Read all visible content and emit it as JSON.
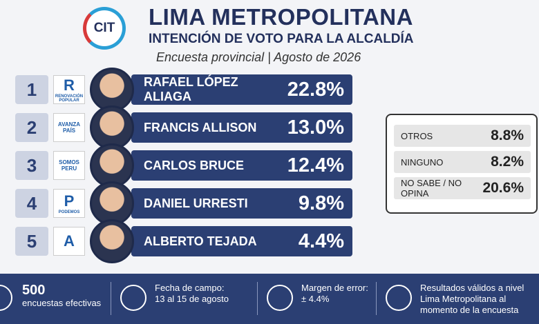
{
  "header": {
    "logo": "CIT",
    "title": "LIMA METROPOLITANA",
    "subtitle": "INTENCIÓN DE VOTO PARA LA ALCALDÍA",
    "caption": "Encuesta provincial | Agosto de 2026"
  },
  "candidates": [
    {
      "rank": "1",
      "party": "R",
      "party_name": "RENOVACIÓN POPULAR",
      "name": "RAFAEL LÓPEZ ALIAGA",
      "value": "22.8%"
    },
    {
      "rank": "2",
      "party": "AVANZA PAÍS",
      "name": "FRANCIS ALLISON",
      "value": "13.0%"
    },
    {
      "rank": "3",
      "party": "SOMOS PERU",
      "name": "CARLOS BRUCE",
      "value": "12.4%"
    },
    {
      "rank": "4",
      "party": "P",
      "party_name": "PODEMOS",
      "name": "DANIEL URRESTI",
      "value": "9.8%"
    },
    {
      "rank": "5",
      "party": "A",
      "name": "ALBERTO TEJADA",
      "value": "4.4%"
    }
  ],
  "others": [
    {
      "label": "OTROS",
      "value": "8.8%"
    },
    {
      "label": "NINGUNO",
      "value": "8.2%"
    },
    {
      "label": "NO SABE / NO OPINA",
      "value": "20.6%"
    }
  ],
  "footer": [
    {
      "top": "500",
      "bottom": "encuestas efectivas"
    },
    {
      "top": "Fecha de campo:",
      "bottom": "13 al 15 de agosto"
    },
    {
      "top": "Margen de error:",
      "bottom": "± 4.4%"
    },
    {
      "top": "Resultados válidos a nivel Lima Metropolitana al momento de la encuesta"
    }
  ]
}
